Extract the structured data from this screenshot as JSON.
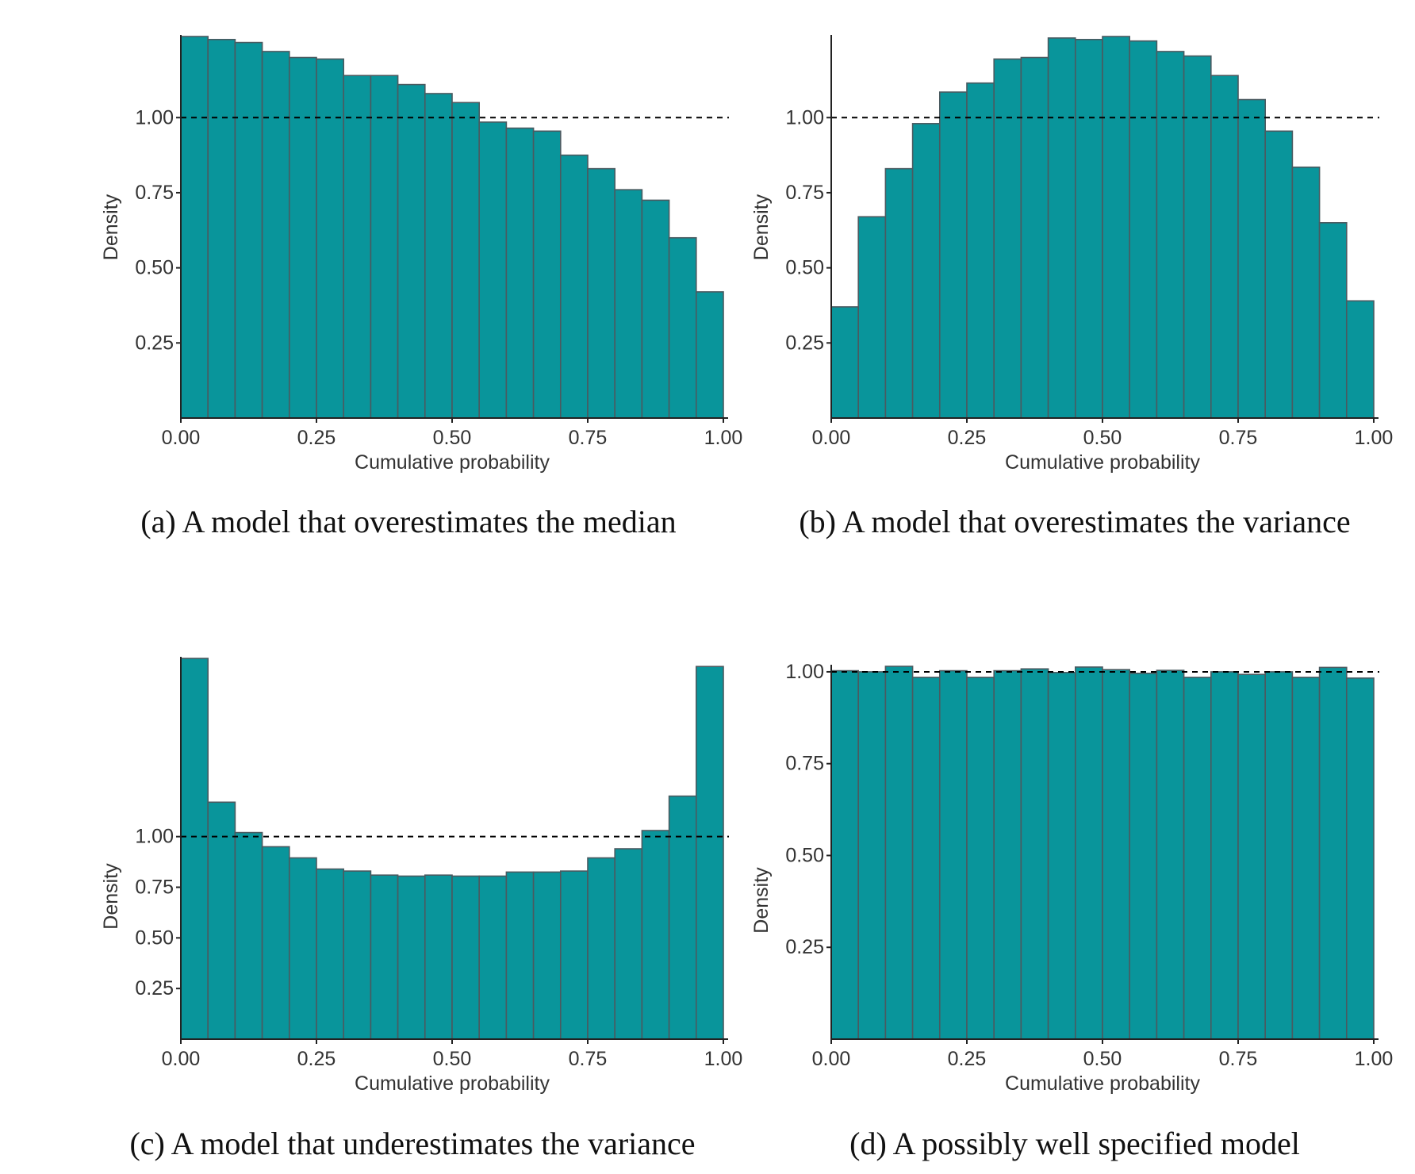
{
  "chart_data": [
    {
      "type": "bar",
      "id": "a",
      "caption": "(a) A model that overestimates the median",
      "xlabel": "Cumulative probability",
      "ylabel": "Density",
      "xticks": [
        "0.00",
        "0.25",
        "0.50",
        "0.75",
        "1.00"
      ],
      "yticks": [
        "0.25",
        "0.50",
        "0.75",
        "1.00"
      ],
      "xlim": [
        0,
        1
      ],
      "ylim": [
        0,
        1.27
      ],
      "reference_line": 1.0,
      "bin_width": 0.05,
      "values": [
        1.27,
        1.26,
        1.25,
        1.22,
        1.2,
        1.195,
        1.14,
        1.14,
        1.11,
        1.08,
        1.05,
        0.985,
        0.965,
        0.955,
        0.875,
        0.83,
        0.76,
        0.725,
        0.6,
        0.42
      ]
    },
    {
      "type": "bar",
      "id": "b",
      "caption": "(b) A model that overestimates the variance",
      "xlabel": "Cumulative probability",
      "ylabel": "Density",
      "xticks": [
        "0.00",
        "0.25",
        "0.50",
        "0.75",
        "1.00"
      ],
      "yticks": [
        "0.25",
        "0.50",
        "0.75",
        "1.00"
      ],
      "xlim": [
        0,
        1
      ],
      "ylim": [
        0,
        1.27
      ],
      "reference_line": 1.0,
      "bin_width": 0.05,
      "values": [
        0.37,
        0.67,
        0.83,
        0.98,
        1.085,
        1.115,
        1.195,
        1.2,
        1.265,
        1.26,
        1.27,
        1.255,
        1.22,
        1.205,
        1.14,
        1.06,
        0.955,
        0.835,
        0.65,
        0.39
      ]
    },
    {
      "type": "bar",
      "id": "c",
      "caption": "(c) A model that underestimates the variance",
      "xlabel": "Cumulative probability",
      "ylabel": "Density",
      "xticks": [
        "0.00",
        "0.25",
        "0.50",
        "0.75",
        "1.00"
      ],
      "yticks": [
        "0.25",
        "0.50",
        "0.75",
        "1.00"
      ],
      "xlim": [
        0,
        1
      ],
      "ylim": [
        0,
        1.88
      ],
      "reference_line": 1.0,
      "bin_width": 0.05,
      "values": [
        1.88,
        1.17,
        1.02,
        0.95,
        0.895,
        0.84,
        0.83,
        0.81,
        0.805,
        0.81,
        0.805,
        0.805,
        0.825,
        0.825,
        0.83,
        0.895,
        0.94,
        1.03,
        1.2,
        1.84
      ]
    },
    {
      "type": "bar",
      "id": "d",
      "caption": "(d) A possibly well specified model",
      "xlabel": "Cumulative probability",
      "ylabel": "Density",
      "xticks": [
        "0.00",
        "0.25",
        "0.50",
        "0.75",
        "1.00"
      ],
      "yticks": [
        "0.25",
        "0.50",
        "0.75",
        "1.00"
      ],
      "xlim": [
        0,
        1
      ],
      "ylim": [
        0,
        1.015
      ],
      "reference_line": 1.0,
      "bin_width": 0.05,
      "values": [
        1.003,
        1.0,
        1.015,
        0.985,
        1.003,
        0.985,
        1.003,
        1.008,
        0.998,
        1.013,
        1.006,
        0.996,
        1.004,
        0.985,
        1.0,
        0.993,
        1.0,
        0.985,
        1.012,
        0.983
      ]
    }
  ],
  "colors": {
    "bar_fill": "#09959b",
    "bar_edge": "#4a5a60",
    "axis": "#222222",
    "text": "#333333"
  }
}
